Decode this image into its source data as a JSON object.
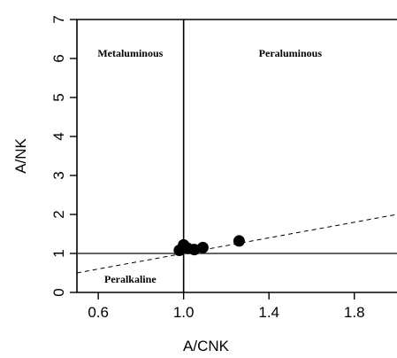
{
  "chart_data": {
    "type": "scatter",
    "xlabel": "A/CNK",
    "ylabel": "A/NK",
    "xlim": [
      0.5,
      2.0
    ],
    "ylim": [
      0,
      7
    ],
    "x_ticks": [
      0.6,
      1.0,
      1.4,
      1.8
    ],
    "x_tick_labels": [
      "0.6",
      "1.0",
      "1.4",
      "1.8"
    ],
    "y_ticks": [
      0,
      1,
      2,
      3,
      4,
      5,
      6,
      7
    ],
    "y_tick_labels": [
      "0",
      "1",
      "2",
      "3",
      "4",
      "5",
      "6",
      "7"
    ],
    "grid": false,
    "region_labels": [
      "Metaluminous",
      "Peraluminous",
      "Peralkaline"
    ],
    "boundaries": {
      "vertical_x": 1.0,
      "horizontal_y": 1.0
    },
    "trend_line": {
      "style": "dashed",
      "from": [
        0.5,
        0.5
      ],
      "to": [
        2.0,
        2.0
      ]
    },
    "points": [
      {
        "x": 0.98,
        "y": 1.08
      },
      {
        "x": 1.0,
        "y": 1.22
      },
      {
        "x": 1.02,
        "y": 1.13
      },
      {
        "x": 1.05,
        "y": 1.1
      },
      {
        "x": 1.09,
        "y": 1.15
      },
      {
        "x": 1.26,
        "y": 1.32
      }
    ]
  }
}
